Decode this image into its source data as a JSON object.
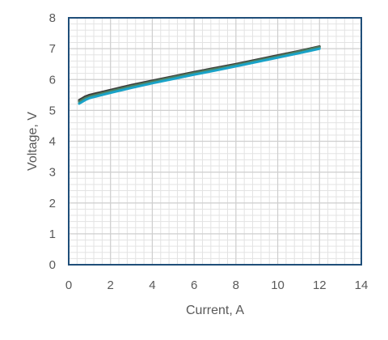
{
  "chart_data": {
    "type": "line",
    "title": "",
    "xlabel": "Current, A",
    "ylabel": "Voltage, V",
    "xlim": [
      0,
      14
    ],
    "ylim": [
      0,
      8
    ],
    "x_ticks": [
      0,
      2,
      4,
      6,
      8,
      10,
      12,
      14
    ],
    "y_ticks": [
      0,
      1,
      2,
      3,
      4,
      5,
      6,
      7,
      8
    ],
    "x_tick_labels": [
      "0",
      "2",
      "4",
      "6",
      "8",
      "10",
      "12",
      "14"
    ],
    "y_tick_labels": [
      "0",
      "1",
      "2",
      "3",
      "4",
      "5",
      "6",
      "7",
      "8"
    ],
    "grid": true,
    "minor_grid": true,
    "legend": "none",
    "series": [
      {
        "color": "#3a3a3a",
        "x": [
          0.5,
          0.8,
          1,
          2,
          3,
          4,
          5,
          6,
          7,
          8,
          9,
          10,
          11,
          12
        ],
        "y": [
          5.33,
          5.45,
          5.5,
          5.66,
          5.82,
          5.96,
          6.1,
          6.24,
          6.37,
          6.5,
          6.64,
          6.78,
          6.92,
          7.07
        ]
      },
      {
        "color": "#4f7f5f",
        "x": [
          0.5,
          0.8,
          1,
          2,
          3,
          4,
          5,
          6,
          7,
          8,
          9,
          10,
          11,
          12
        ],
        "y": [
          5.28,
          5.4,
          5.45,
          5.62,
          5.78,
          5.93,
          6.07,
          6.21,
          6.34,
          6.47,
          6.61,
          6.75,
          6.9,
          7.05
        ]
      },
      {
        "color": "#1aa3c8",
        "x": [
          0.5,
          0.8,
          1,
          2,
          3,
          4,
          5,
          6,
          7,
          8,
          9,
          10,
          11,
          12
        ],
        "y": [
          5.22,
          5.34,
          5.4,
          5.57,
          5.73,
          5.88,
          6.02,
          6.16,
          6.29,
          6.43,
          6.57,
          6.71,
          6.85,
          7.0
        ]
      }
    ]
  }
}
